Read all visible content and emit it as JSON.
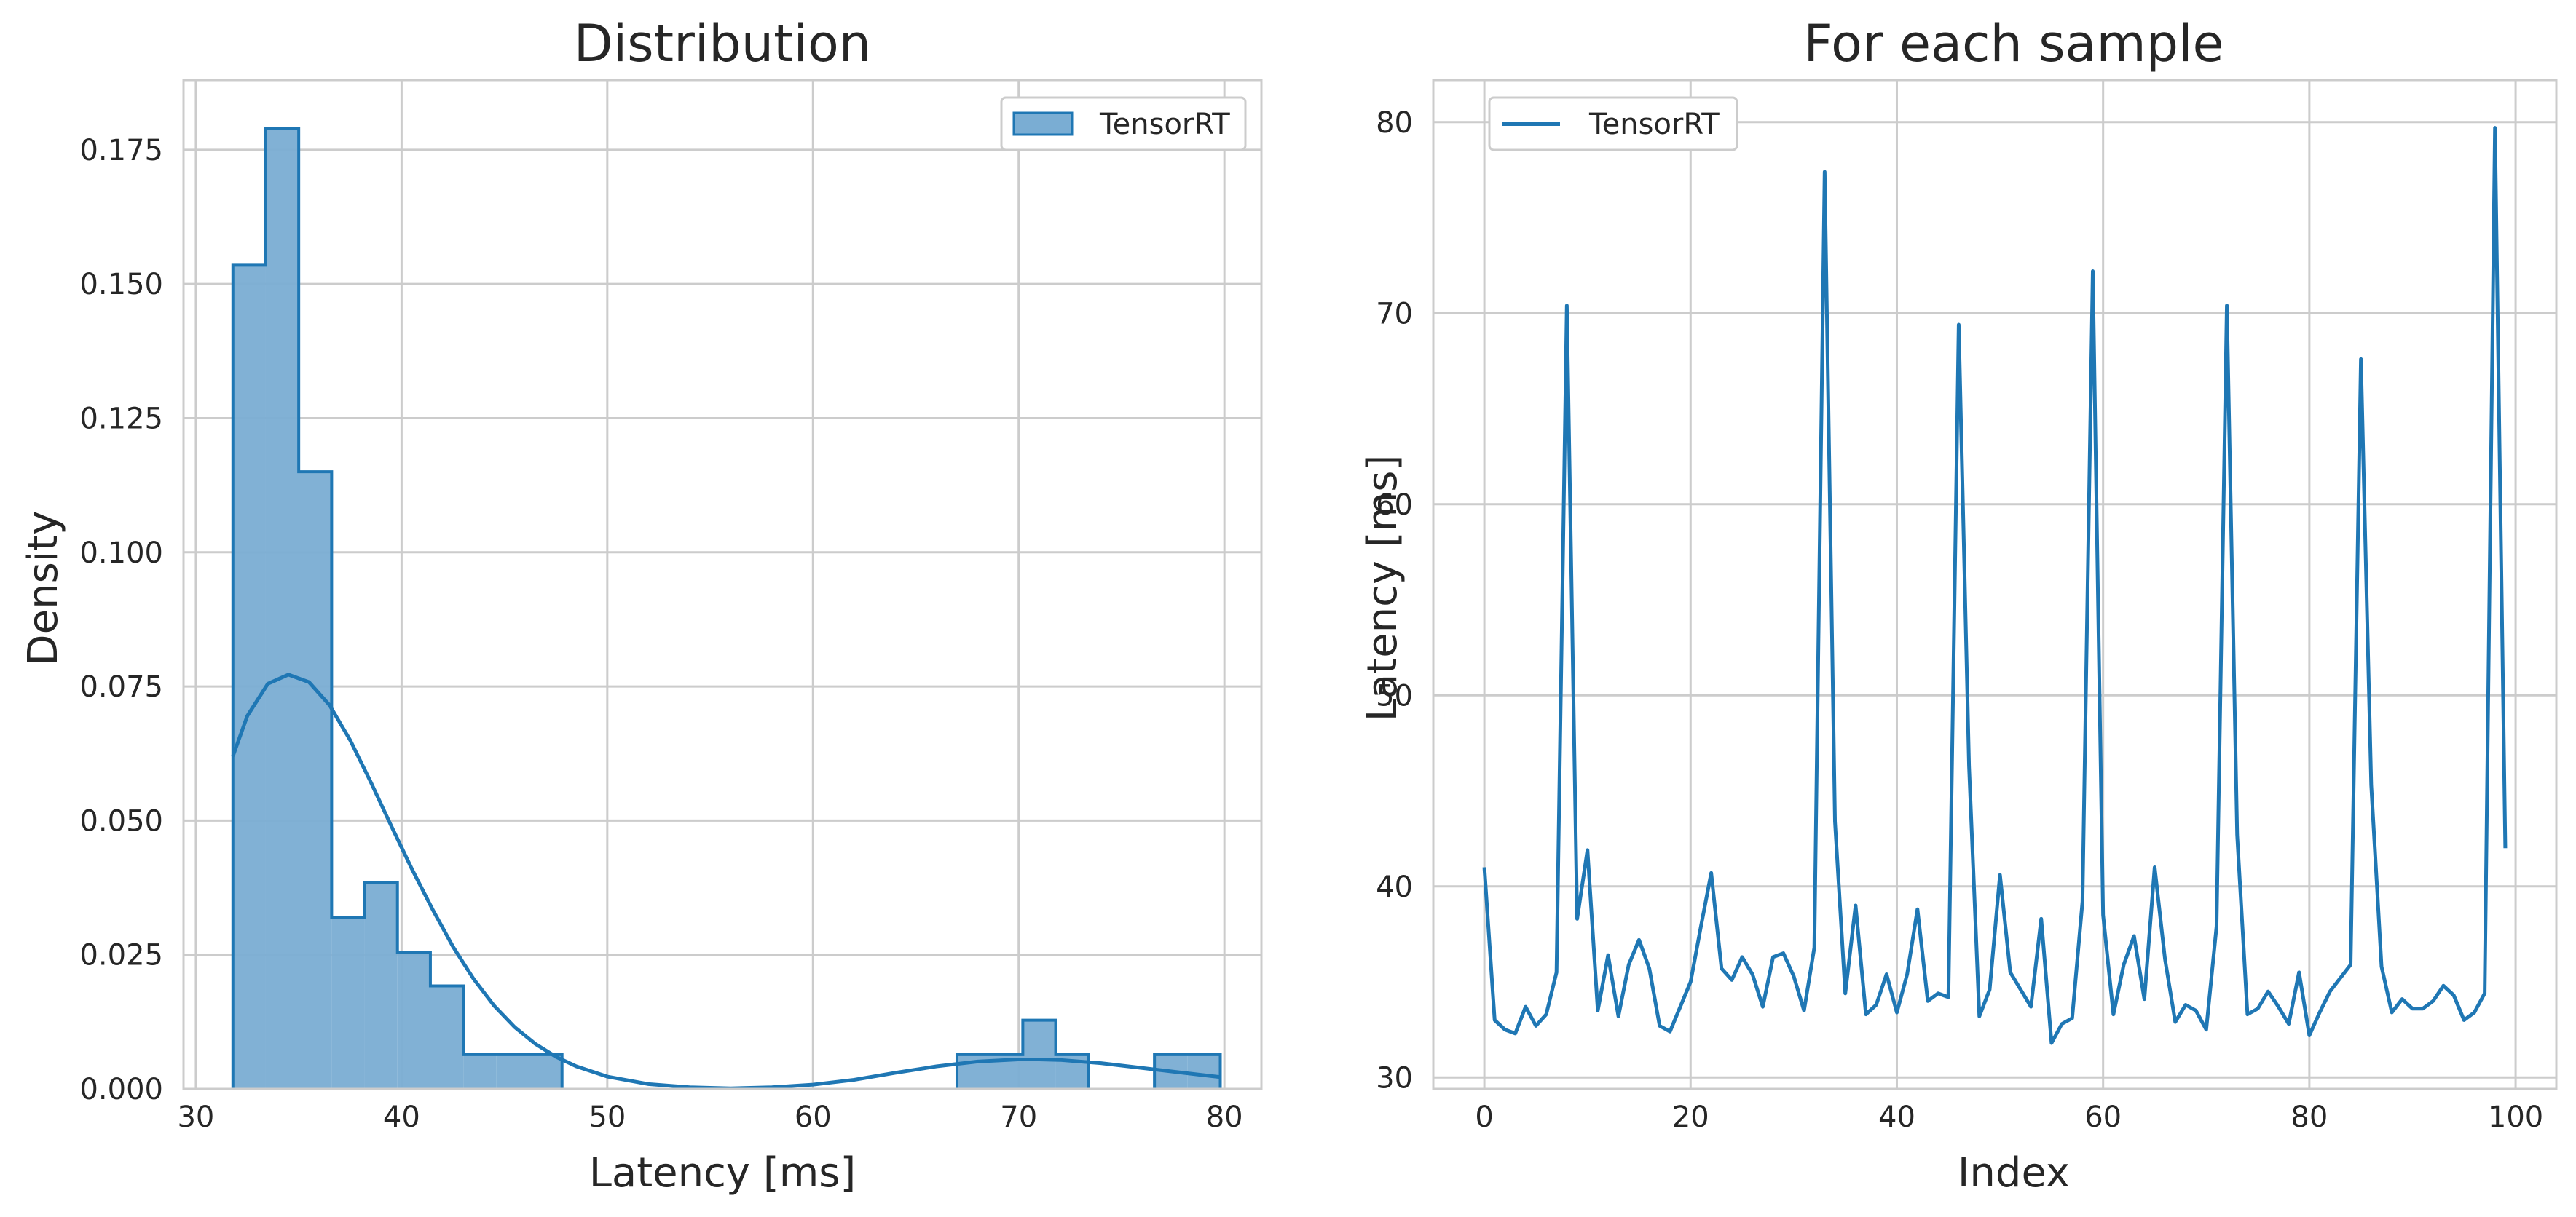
{
  "colors": {
    "series": "#1f77b4",
    "hist_fill": "#7aadd3",
    "grid": "#cccccc",
    "text": "#262626"
  },
  "chart_data": [
    {
      "type": "histogram",
      "title": "Distribution",
      "xlabel": "Latency [ms]",
      "ylabel": "Density",
      "xlim": [
        29.4,
        81.8
      ],
      "ylim": [
        0,
        0.188
      ],
      "xticks": [
        30,
        40,
        50,
        60,
        70,
        80
      ],
      "yticks": [
        0.0,
        0.025,
        0.05,
        0.075,
        0.1,
        0.125,
        0.15,
        0.175
      ],
      "ytick_labels": [
        "0.000",
        "0.025",
        "0.050",
        "0.075",
        "0.100",
        "0.125",
        "0.150",
        "0.175"
      ],
      "grid": true,
      "legend": {
        "position": "top-right",
        "entries": [
          "TensorRT"
        ]
      },
      "bins": [
        {
          "x0": 31.8,
          "x1": 33.4,
          "density": 0.1535
        },
        {
          "x0": 33.4,
          "x1": 35.0,
          "density": 0.179
        },
        {
          "x0": 35.0,
          "x1": 36.6,
          "density": 0.115
        },
        {
          "x0": 36.6,
          "x1": 38.2,
          "density": 0.032
        },
        {
          "x0": 38.2,
          "x1": 39.8,
          "density": 0.0385
        },
        {
          "x0": 39.8,
          "x1": 41.4,
          "density": 0.0255
        },
        {
          "x0": 41.4,
          "x1": 43.0,
          "density": 0.0192
        },
        {
          "x0": 43.0,
          "x1": 44.6,
          "density": 0.0064
        },
        {
          "x0": 44.6,
          "x1": 46.2,
          "density": 0.0064
        },
        {
          "x0": 46.2,
          "x1": 47.8,
          "density": 0.0064
        },
        {
          "x0": 67.0,
          "x1": 68.6,
          "density": 0.0064
        },
        {
          "x0": 68.6,
          "x1": 70.2,
          "density": 0.0064
        },
        {
          "x0": 70.2,
          "x1": 71.8,
          "density": 0.0128
        },
        {
          "x0": 71.8,
          "x1": 73.4,
          "density": 0.0064
        },
        {
          "x0": 76.6,
          "x1": 78.2,
          "density": 0.0064
        },
        {
          "x0": 78.2,
          "x1": 79.8,
          "density": 0.0064
        }
      ],
      "kde": {
        "x": [
          31.8,
          32.5,
          33.5,
          34.5,
          35.5,
          36.5,
          37.5,
          38.5,
          39.5,
          40.5,
          41.5,
          42.5,
          43.5,
          44.5,
          45.5,
          46.5,
          47.5,
          48.5,
          50,
          52,
          54,
          56,
          58,
          60,
          62,
          64,
          66,
          68,
          70,
          71,
          72,
          74,
          76,
          78,
          79.8
        ],
        "y": [
          0.062,
          0.0695,
          0.0755,
          0.0772,
          0.0758,
          0.0715,
          0.065,
          0.0572,
          0.049,
          0.041,
          0.0335,
          0.0265,
          0.0205,
          0.0155,
          0.0115,
          0.0084,
          0.006,
          0.0042,
          0.0023,
          0.0009,
          0.0003,
          0.0001,
          0.0003,
          0.0008,
          0.0017,
          0.003,
          0.0042,
          0.0051,
          0.0055,
          0.0055,
          0.0054,
          0.0048,
          0.0039,
          0.003,
          0.0022
        ]
      }
    },
    {
      "type": "line",
      "title": "For each sample",
      "xlabel": "Index",
      "ylabel": "Latency [ms]",
      "xlim": [
        -4.95,
        103.95
      ],
      "ylim": [
        29.4,
        82.2
      ],
      "xticks": [
        0,
        20,
        40,
        60,
        80,
        100
      ],
      "yticks": [
        30,
        40,
        50,
        60,
        70,
        80
      ],
      "grid": true,
      "legend": {
        "position": "top-left",
        "entries": [
          "TensorRT"
        ]
      },
      "series": [
        {
          "name": "TensorRT",
          "x": [
            0,
            1,
            2,
            3,
            4,
            5,
            6,
            7,
            8,
            9,
            10,
            11,
            12,
            13,
            14,
            15,
            16,
            17,
            18,
            19,
            20,
            21,
            22,
            23,
            24,
            25,
            26,
            27,
            28,
            29,
            30,
            31,
            32,
            33,
            34,
            35,
            36,
            37,
            38,
            39,
            40,
            41,
            42,
            43,
            44,
            45,
            46,
            47,
            48,
            49,
            50,
            51,
            52,
            53,
            54,
            55,
            56,
            57,
            58,
            59,
            60,
            61,
            62,
            63,
            64,
            65,
            66,
            67,
            68,
            69,
            70,
            71,
            72,
            73,
            74,
            75,
            76,
            77,
            78,
            79,
            80,
            81,
            82,
            83,
            84,
            85,
            86,
            87,
            88,
            89,
            90,
            91,
            92,
            93,
            94,
            95,
            96,
            97,
            98,
            99
          ],
          "values": [
            41.0,
            33.0,
            32.5,
            32.3,
            33.7,
            32.7,
            33.3,
            35.5,
            70.4,
            38.3,
            41.9,
            33.5,
            36.4,
            33.2,
            35.9,
            37.2,
            35.7,
            32.7,
            32.4,
            33.7,
            35.0,
            37.9,
            40.7,
            35.7,
            35.1,
            36.3,
            35.4,
            33.7,
            36.3,
            36.5,
            35.3,
            33.5,
            36.8,
            77.4,
            43.4,
            34.4,
            39.0,
            33.3,
            33.8,
            35.4,
            33.4,
            35.4,
            38.8,
            34.0,
            34.4,
            34.2,
            69.4,
            46.3,
            33.2,
            34.6,
            40.6,
            35.5,
            34.6,
            33.7,
            38.3,
            31.8,
            32.8,
            33.1,
            39.2,
            72.2,
            38.5,
            33.3,
            35.9,
            37.4,
            34.1,
            41.0,
            36.2,
            32.9,
            33.8,
            33.5,
            32.5,
            37.9,
            70.4,
            42.7,
            33.3,
            33.6,
            34.5,
            33.7,
            32.8,
            35.5,
            32.2,
            33.4,
            34.5,
            35.2,
            35.9,
            67.6,
            45.3,
            35.8,
            33.4,
            34.1,
            33.6,
            33.6,
            34.0,
            34.8,
            34.3,
            33.0,
            33.4,
            34.4,
            79.7,
            42.0
          ]
        }
      ]
    }
  ]
}
